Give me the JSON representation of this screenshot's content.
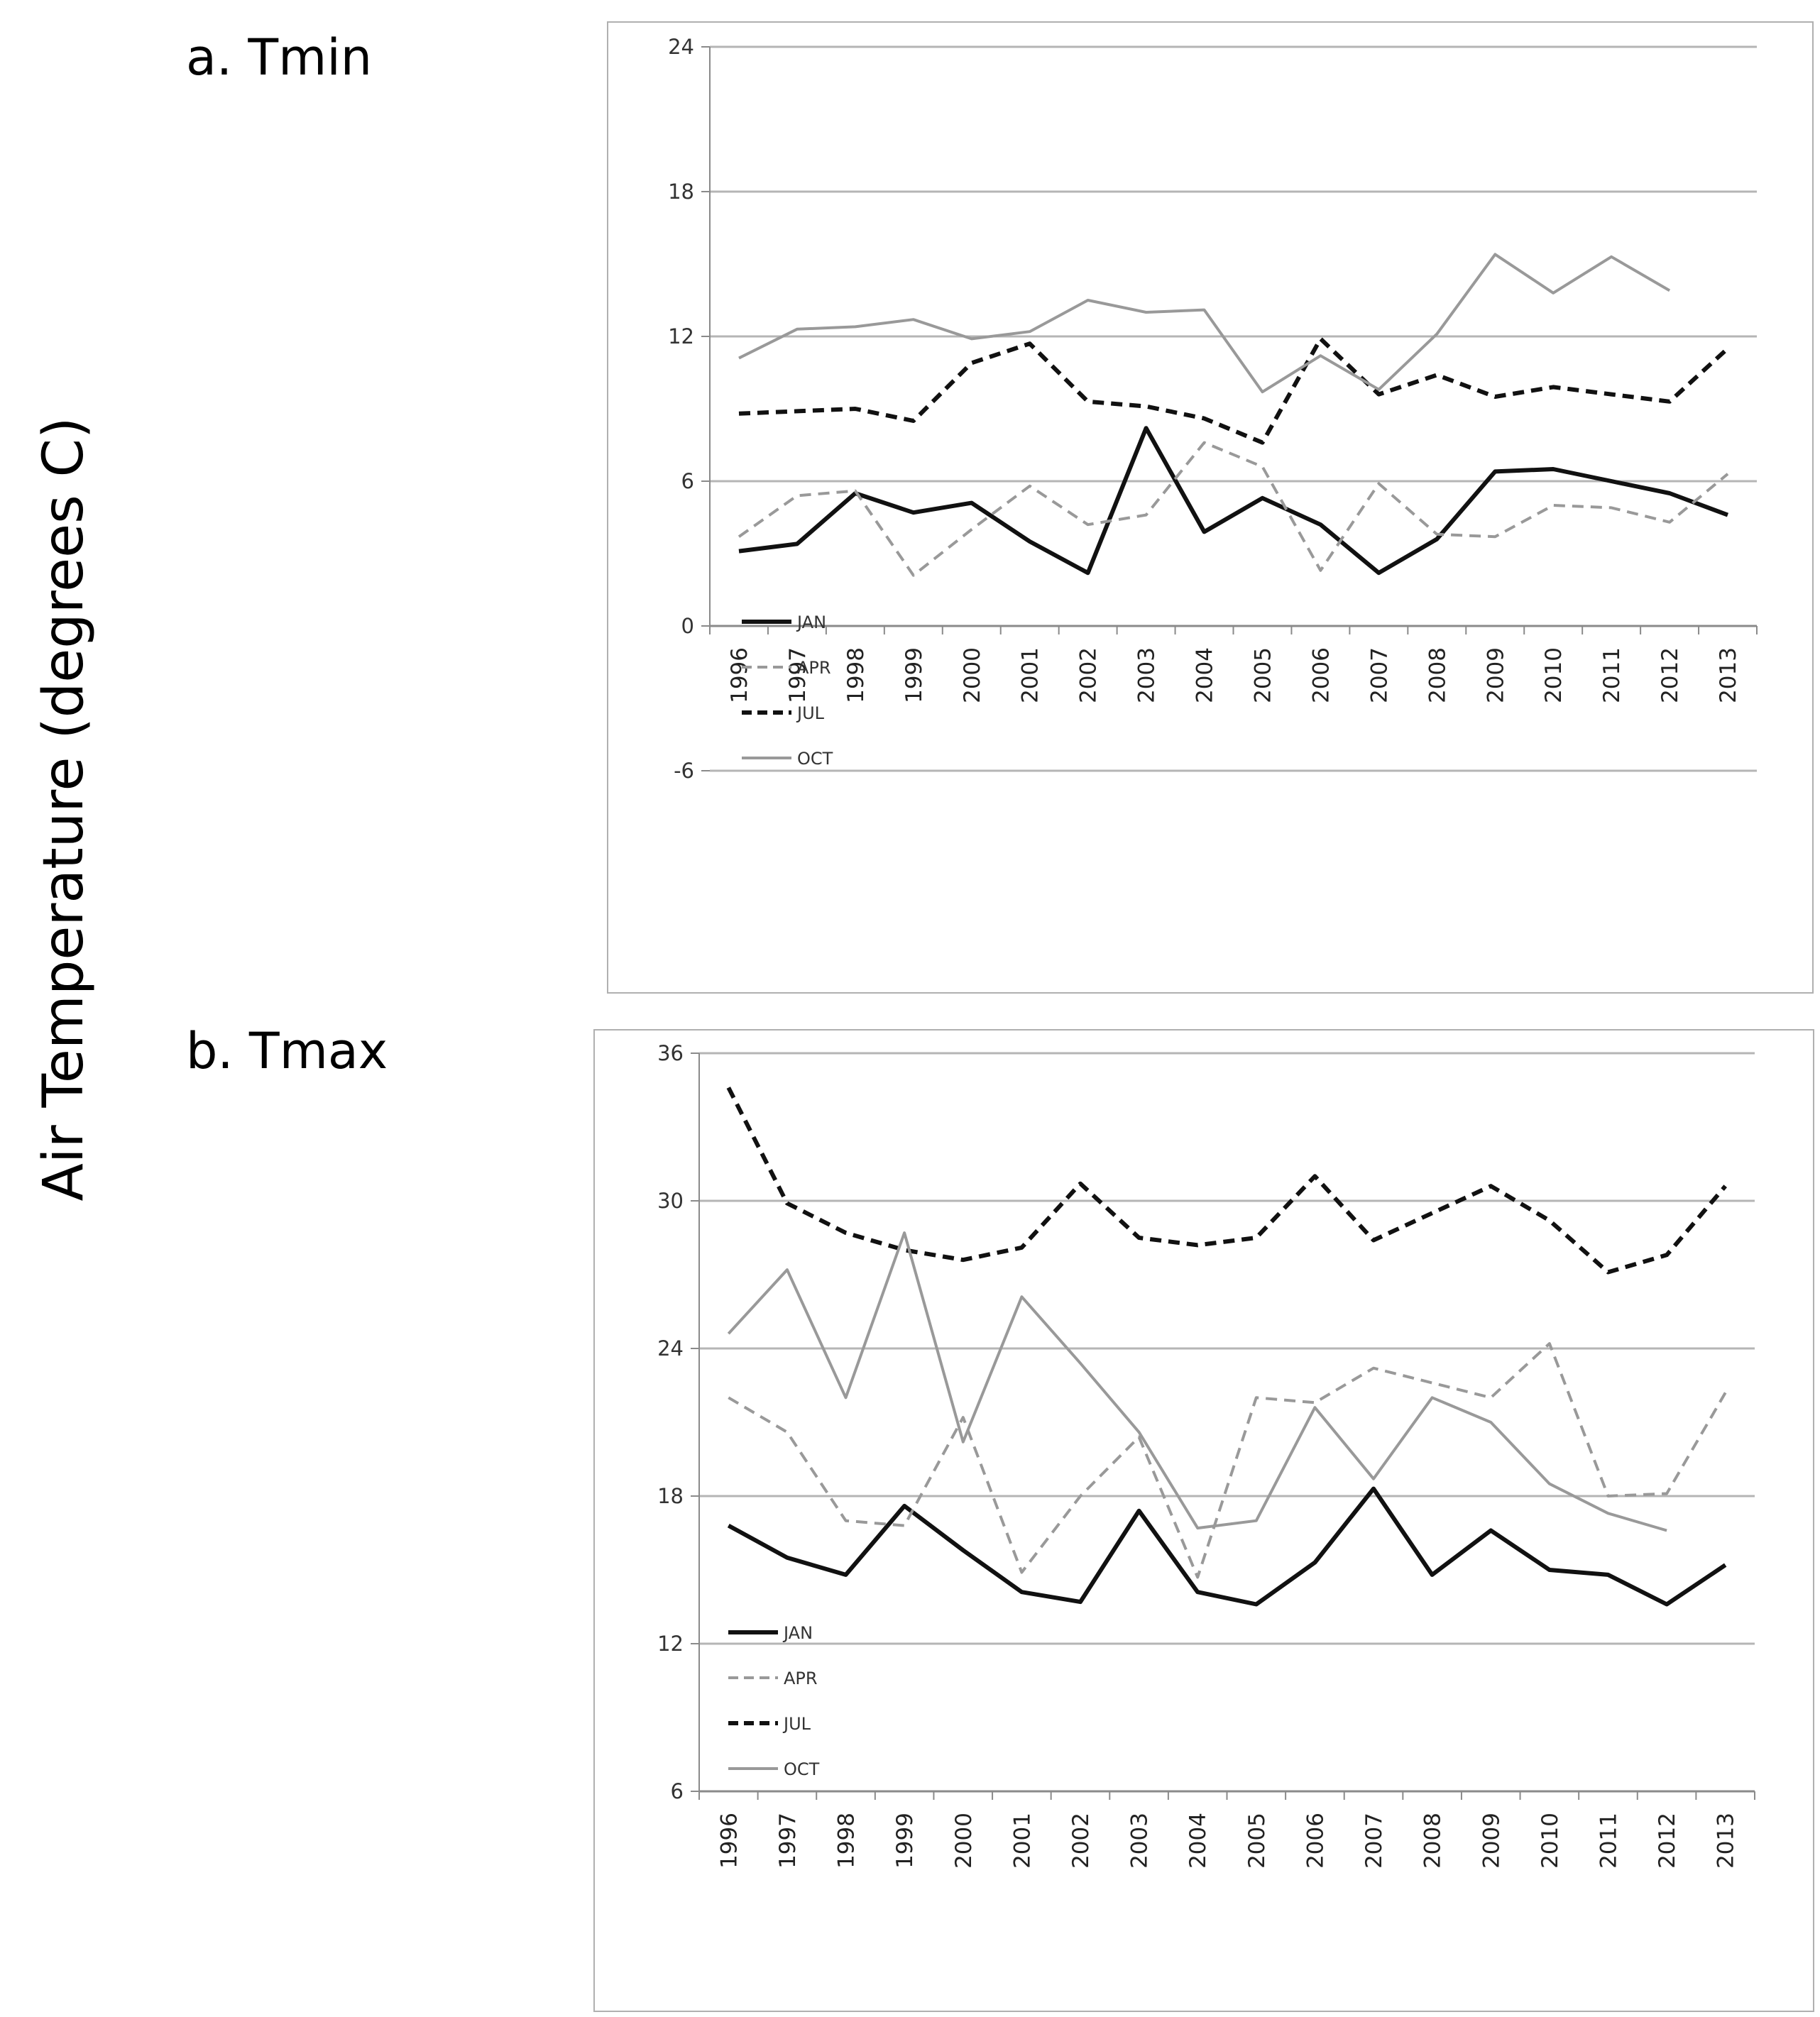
{
  "y_axis_label": "Air Temperature (degrees C)",
  "colors": {
    "JAN": "#111111",
    "APR": "#999999",
    "JUL": "#111111",
    "OCT": "#999999",
    "grid": "#b5b5b5",
    "frame": "#b0b0b0",
    "axis": "#8a8a8a"
  },
  "chart_data": [
    {
      "type": "line",
      "panel_title": "a. Tmin",
      "xlabel": "",
      "ylabel": "Air Temperature (degrees C)",
      "ylim": [
        -6,
        24
      ],
      "yticks": [
        -6,
        0,
        6,
        12,
        18,
        24
      ],
      "grid": true,
      "legend_position": "bottom-left",
      "categories": [
        "1996",
        "1997",
        "1998",
        "1999",
        "2000",
        "2001",
        "2002",
        "2003",
        "2004",
        "2005",
        "2006",
        "2007",
        "2008",
        "2009",
        "2010",
        "2011",
        "2012",
        "2013"
      ],
      "series": [
        {
          "name": "JAN",
          "style": "solid-thick",
          "values": [
            3.1,
            3.4,
            5.5,
            4.7,
            5.1,
            3.5,
            2.2,
            8.2,
            3.9,
            5.3,
            4.2,
            2.2,
            3.6,
            6.4,
            6.5,
            6.0,
            5.5,
            4.6
          ]
        },
        {
          "name": "APR",
          "style": "dashed-thin",
          "values": [
            3.7,
            5.4,
            5.6,
            2.1,
            4.0,
            5.8,
            4.2,
            4.6,
            7.6,
            6.6,
            2.3,
            5.9,
            3.8,
            3.7,
            5.0,
            4.9,
            4.3,
            6.3
          ]
        },
        {
          "name": "JUL",
          "style": "dashed-thick",
          "values": [
            8.8,
            8.9,
            9.0,
            8.5,
            10.9,
            11.7,
            9.3,
            9.1,
            8.6,
            7.6,
            11.9,
            9.6,
            10.4,
            9.5,
            9.9,
            9.6,
            9.3,
            11.5
          ]
        },
        {
          "name": "OCT",
          "style": "solid-thin",
          "values": [
            11.1,
            12.3,
            12.4,
            12.7,
            11.9,
            12.2,
            13.5,
            13.0,
            13.1,
            9.7,
            11.2,
            9.8,
            12.1,
            15.4,
            13.8,
            15.3,
            13.9,
            null
          ]
        }
      ]
    },
    {
      "type": "line",
      "panel_title": "b. Tmax",
      "xlabel": "",
      "ylabel": "Air Temperature (degrees C)",
      "ylim": [
        6,
        36
      ],
      "yticks": [
        6,
        12,
        18,
        24,
        30,
        36
      ],
      "grid": true,
      "legend_position": "bottom-left",
      "categories": [
        "1996",
        "1997",
        "1998",
        "1999",
        "2000",
        "2001",
        "2002",
        "2003",
        "2004",
        "2005",
        "2006",
        "2007",
        "2008",
        "2009",
        "2010",
        "2011",
        "2012",
        "2013"
      ],
      "series": [
        {
          "name": "JAN",
          "style": "solid-thick",
          "values": [
            16.8,
            15.5,
            14.8,
            17.6,
            15.8,
            14.1,
            13.7,
            17.4,
            14.1,
            13.6,
            15.3,
            18.3,
            14.8,
            16.6,
            15.0,
            14.8,
            13.6,
            15.2
          ]
        },
        {
          "name": "APR",
          "style": "dashed-thin",
          "values": [
            22.0,
            20.6,
            17.0,
            16.8,
            21.2,
            14.9,
            18.0,
            20.4,
            14.7,
            22.0,
            21.8,
            23.2,
            22.6,
            22.0,
            24.2,
            18.0,
            18.1,
            22.2
          ]
        },
        {
          "name": "JUL",
          "style": "dashed-thick",
          "values": [
            34.6,
            29.9,
            28.7,
            28.0,
            27.6,
            28.1,
            30.7,
            28.5,
            28.2,
            28.5,
            31.0,
            28.4,
            29.5,
            30.6,
            29.2,
            27.1,
            27.8,
            30.6
          ]
        },
        {
          "name": "OCT",
          "style": "solid-thin",
          "values": [
            24.6,
            27.2,
            22.0,
            28.7,
            20.2,
            26.1,
            23.4,
            20.6,
            16.7,
            17.0,
            21.6,
            18.7,
            22.0,
            21.0,
            18.5,
            17.3,
            16.6,
            null
          ]
        }
      ]
    }
  ]
}
